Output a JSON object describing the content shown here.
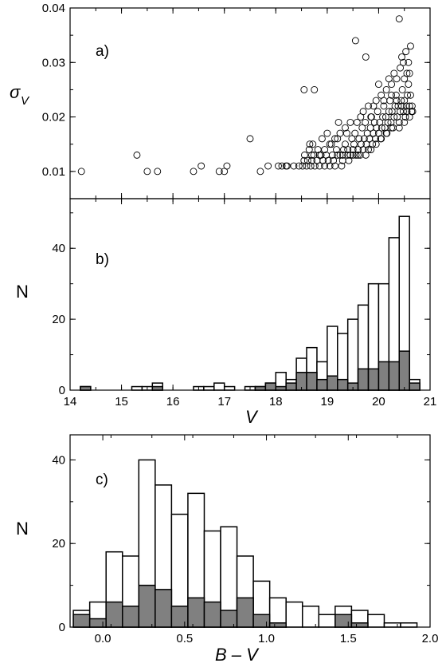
{
  "chart_data": [
    {
      "id": "a",
      "type": "scatter",
      "panel_label": "a)",
      "ylabel": "σ",
      "ylabel_sub": "V",
      "xlim": [
        14,
        21
      ],
      "ylim": [
        0.005,
        0.04
      ],
      "yticks": [
        "0.01",
        "0.02",
        "0.03",
        "0.04"
      ],
      "points": [
        [
          14.22,
          0.01
        ],
        [
          15.3,
          0.013
        ],
        [
          15.5,
          0.01
        ],
        [
          15.7,
          0.01
        ],
        [
          16.4,
          0.01
        ],
        [
          16.55,
          0.011
        ],
        [
          16.9,
          0.01
        ],
        [
          17.0,
          0.01
        ],
        [
          17.05,
          0.011
        ],
        [
          17.5,
          0.016
        ],
        [
          17.7,
          0.01
        ],
        [
          17.85,
          0.011
        ],
        [
          18.05,
          0.011
        ],
        [
          18.12,
          0.011
        ],
        [
          18.2,
          0.011
        ],
        [
          18.22,
          0.011
        ],
        [
          18.35,
          0.011
        ],
        [
          18.45,
          0.011
        ],
        [
          18.52,
          0.011
        ],
        [
          18.55,
          0.012
        ],
        [
          18.56,
          0.013
        ],
        [
          18.6,
          0.011
        ],
        [
          18.62,
          0.012
        ],
        [
          18.65,
          0.014
        ],
        [
          18.66,
          0.015
        ],
        [
          18.68,
          0.011
        ],
        [
          18.7,
          0.012
        ],
        [
          18.72,
          0.015
        ],
        [
          18.74,
          0.013
        ],
        [
          18.76,
          0.011
        ],
        [
          18.8,
          0.012
        ],
        [
          18.82,
          0.014
        ],
        [
          18.85,
          0.011
        ],
        [
          18.88,
          0.013
        ],
        [
          18.9,
          0.016
        ],
        [
          18.92,
          0.012
        ],
        [
          18.95,
          0.011
        ],
        [
          18.98,
          0.013
        ],
        [
          19.0,
          0.017
        ],
        [
          19.02,
          0.012
        ],
        [
          19.05,
          0.011
        ],
        [
          19.08,
          0.015
        ],
        [
          19.1,
          0.013
        ],
        [
          19.12,
          0.012
        ],
        [
          19.15,
          0.011
        ],
        [
          19.18,
          0.014
        ],
        [
          19.2,
          0.016
        ],
        [
          19.22,
          0.019
        ],
        [
          19.25,
          0.013
        ],
        [
          19.28,
          0.011
        ],
        [
          19.3,
          0.012
        ],
        [
          19.32,
          0.014
        ],
        [
          19.35,
          0.015
        ],
        [
          19.38,
          0.017
        ],
        [
          19.4,
          0.013
        ],
        [
          19.42,
          0.012
        ],
        [
          19.45,
          0.013
        ],
        [
          19.48,
          0.016
        ],
        [
          19.5,
          0.014
        ],
        [
          19.52,
          0.015
        ],
        [
          19.54,
          0.017
        ],
        [
          19.56,
          0.013
        ],
        [
          19.58,
          0.019
        ],
        [
          19.6,
          0.014
        ],
        [
          19.62,
          0.016
        ],
        [
          19.64,
          0.013
        ],
        [
          19.66,
          0.015
        ],
        [
          19.68,
          0.018
        ],
        [
          19.7,
          0.014
        ],
        [
          19.72,
          0.016
        ],
        [
          19.74,
          0.019
        ],
        [
          19.76,
          0.015
        ],
        [
          19.78,
          0.017
        ],
        [
          19.8,
          0.014
        ],
        [
          19.82,
          0.016
        ],
        [
          19.84,
          0.018
        ],
        [
          19.86,
          0.02
        ],
        [
          19.88,
          0.015
        ],
        [
          19.9,
          0.017
        ],
        [
          19.92,
          0.019
        ],
        [
          19.94,
          0.016
        ],
        [
          19.96,
          0.018
        ],
        [
          19.98,
          0.021
        ],
        [
          20.0,
          0.017
        ],
        [
          20.02,
          0.019
        ],
        [
          20.04,
          0.016
        ],
        [
          20.06,
          0.018
        ],
        [
          20.08,
          0.02
        ],
        [
          20.1,
          0.022
        ],
        [
          20.12,
          0.018
        ],
        [
          20.14,
          0.02
        ],
        [
          20.16,
          0.017
        ],
        [
          20.18,
          0.019
        ],
        [
          20.2,
          0.021
        ],
        [
          20.22,
          0.023
        ],
        [
          20.24,
          0.019
        ],
        [
          20.26,
          0.021
        ],
        [
          20.28,
          0.018
        ],
        [
          20.3,
          0.02
        ],
        [
          20.32,
          0.022
        ],
        [
          20.34,
          0.024
        ],
        [
          20.36,
          0.02
        ],
        [
          20.38,
          0.022
        ],
        [
          20.4,
          0.019
        ],
        [
          20.42,
          0.021
        ],
        [
          20.44,
          0.023
        ],
        [
          20.46,
          0.025
        ],
        [
          20.48,
          0.021
        ],
        [
          20.5,
          0.023
        ],
        [
          20.52,
          0.02
        ],
        [
          20.54,
          0.022
        ],
        [
          20.56,
          0.024
        ],
        [
          20.58,
          0.026
        ],
        [
          20.6,
          0.022
        ],
        [
          20.62,
          0.024
        ],
        [
          20.64,
          0.021
        ],
        [
          20.35,
          0.027
        ],
        [
          20.42,
          0.029
        ],
        [
          20.48,
          0.03
        ],
        [
          20.53,
          0.032
        ],
        [
          20.58,
          0.03
        ],
        [
          20.62,
          0.033
        ],
        [
          20.4,
          0.038
        ],
        [
          20.45,
          0.031
        ],
        [
          20.55,
          0.028
        ],
        [
          19.8,
          0.022
        ],
        [
          19.95,
          0.023
        ],
        [
          20.05,
          0.024
        ],
        [
          20.15,
          0.025
        ],
        [
          20.25,
          0.026
        ],
        [
          20.1,
          0.023
        ],
        [
          19.9,
          0.022
        ],
        [
          19.7,
          0.021
        ],
        [
          20.5,
          0.027
        ],
        [
          20.6,
          0.028
        ],
        [
          18.75,
          0.025
        ],
        [
          18.55,
          0.025
        ],
        [
          19.55,
          0.034
        ],
        [
          19.75,
          0.031
        ],
        [
          20.0,
          0.026
        ],
        [
          20.2,
          0.027
        ],
        [
          20.3,
          0.028
        ],
        [
          19.85,
          0.02
        ],
        [
          20.55,
          0.021
        ],
        [
          20.45,
          0.022
        ],
        [
          20.35,
          0.023
        ],
        [
          20.25,
          0.024
        ],
        [
          19.65,
          0.02
        ],
        [
          19.45,
          0.019
        ],
        [
          19.35,
          0.018
        ],
        [
          19.25,
          0.017
        ],
        [
          19.15,
          0.016
        ],
        [
          19.05,
          0.015
        ],
        [
          18.95,
          0.014
        ],
        [
          18.85,
          0.013
        ],
        [
          18.7,
          0.013
        ],
        [
          19.2,
          0.013
        ],
        [
          19.3,
          0.013
        ],
        [
          19.4,
          0.014
        ],
        [
          19.5,
          0.013
        ],
        [
          19.6,
          0.013
        ],
        [
          19.75,
          0.013
        ],
        [
          19.85,
          0.014
        ],
        [
          19.95,
          0.015
        ],
        [
          20.05,
          0.016
        ],
        [
          20.15,
          0.017
        ],
        [
          20.25,
          0.018
        ],
        [
          20.4,
          0.018
        ],
        [
          20.5,
          0.019
        ],
        [
          20.6,
          0.02
        ],
        [
          20.65,
          0.022
        ],
        [
          20.66,
          0.021
        ]
      ]
    },
    {
      "id": "b",
      "type": "bar",
      "panel_label": "b)",
      "ylabel": "N",
      "xlabel": "V",
      "xlim": [
        14,
        21
      ],
      "ylim": [
        0,
        54
      ],
      "xticks": [
        "14",
        "15",
        "16",
        "17",
        "18",
        "19",
        "20",
        "21"
      ],
      "yticks": [
        "0",
        "20",
        "40"
      ],
      "bin_width": 0.2,
      "bin_starts": [
        14.2,
        14.4,
        14.6,
        14.8,
        15.0,
        15.2,
        15.4,
        15.6,
        15.8,
        16.0,
        16.2,
        16.4,
        16.6,
        16.8,
        17.0,
        17.2,
        17.4,
        17.6,
        17.8,
        18.0,
        18.2,
        18.4,
        18.6,
        18.8,
        19.0,
        19.2,
        19.4,
        19.6,
        19.8,
        20.0,
        20.2,
        20.4,
        20.6
      ],
      "series": [
        {
          "values": [
            1,
            0,
            0,
            0,
            0,
            1,
            1,
            2,
            0,
            0,
            0,
            1,
            1,
            2,
            1,
            0,
            1,
            1,
            2,
            5,
            3,
            9,
            12,
            8,
            18,
            16,
            20,
            24,
            30,
            30,
            43,
            49,
            3
          ]
        },
        {
          "values": [
            1,
            0,
            0,
            0,
            0,
            0,
            0,
            1,
            0,
            0,
            0,
            0,
            0,
            0,
            0,
            0,
            0,
            1,
            2,
            1,
            2,
            5,
            5,
            3,
            4,
            3,
            2,
            6,
            6,
            8,
            8,
            11,
            2
          ]
        }
      ]
    },
    {
      "id": "c",
      "type": "bar",
      "panel_label": "c)",
      "ylabel": "N",
      "xlabel": "B – V",
      "xlim": [
        -0.2,
        2.0
      ],
      "ylim": [
        0,
        46
      ],
      "xticks": [
        "0.0",
        "0.5",
        "1.0",
        "1.5",
        "2.0"
      ],
      "yticks": [
        "0",
        "20",
        "40"
      ],
      "bin_width": 0.1,
      "bin_starts": [
        -0.18,
        -0.08,
        0.02,
        0.12,
        0.22,
        0.32,
        0.42,
        0.52,
        0.62,
        0.72,
        0.82,
        0.92,
        1.02,
        1.12,
        1.22,
        1.32,
        1.42,
        1.52,
        1.62,
        1.72,
        1.82
      ],
      "series": [
        {
          "values": [
            4,
            6,
            18,
            17,
            40,
            34,
            27,
            32,
            23,
            24,
            17,
            11,
            7,
            6,
            5,
            3,
            5,
            4,
            3,
            1,
            1
          ]
        },
        {
          "values": [
            3,
            2,
            6,
            5,
            10,
            9,
            5,
            7,
            6,
            4,
            7,
            3,
            1,
            0,
            0,
            0,
            3,
            1,
            0,
            0,
            0
          ]
        }
      ]
    }
  ]
}
